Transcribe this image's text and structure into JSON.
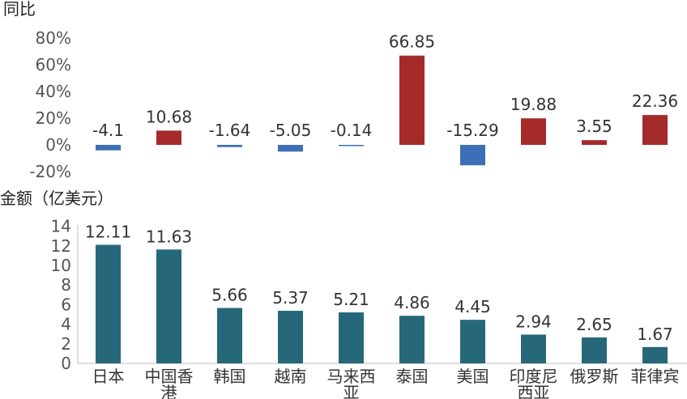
{
  "chart_data": [
    {
      "type": "bar",
      "ylabel": "同比",
      "ylim": [
        -20,
        80
      ],
      "yticks": [
        "80%",
        "60%",
        "40%",
        "20%",
        "0%",
        "-20%"
      ],
      "categories": [
        "日本",
        "中国香港",
        "韩国",
        "越南",
        "马来西亚",
        "泰国",
        "美国",
        "印度尼西亚",
        "俄罗斯",
        "菲律宾"
      ],
      "values": [
        -4.1,
        10.68,
        -1.64,
        -5.05,
        -0.14,
        66.85,
        -15.29,
        19.88,
        3.55,
        22.36
      ],
      "value_labels": [
        "-4.1",
        "10.68",
        "-1.64",
        "-5.05",
        "-0.14",
        "66.85",
        "-15.29",
        "19.88",
        "3.55",
        "22.36"
      ],
      "colors": {
        "positive": "#a52a2a",
        "negative": "#3d6fb6"
      }
    },
    {
      "type": "bar",
      "ylabel": "金额（亿美元）",
      "ylim": [
        0,
        14
      ],
      "yticks": [
        "14",
        "12",
        "10",
        "8",
        "6",
        "4",
        "2",
        "0"
      ],
      "categories": [
        "日本",
        "中国香港",
        "韩国",
        "越南",
        "马来西亚",
        "泰国",
        "美国",
        "印度尼西亚",
        "俄罗斯",
        "菲律宾"
      ],
      "category_lines": [
        [
          "日本"
        ],
        [
          "中国香",
          "港"
        ],
        [
          "韩国"
        ],
        [
          "越南"
        ],
        [
          "马来西",
          "亚"
        ],
        [
          "泰国"
        ],
        [
          "美国"
        ],
        [
          "印度尼",
          "西亚"
        ],
        [
          "俄罗斯"
        ],
        [
          "菲律宾"
        ]
      ],
      "values": [
        12.11,
        11.63,
        5.66,
        5.37,
        5.21,
        4.86,
        4.45,
        2.94,
        2.65,
        1.67
      ],
      "value_labels": [
        "12.11",
        "11.63",
        "5.66",
        "5.37",
        "5.21",
        "4.86",
        "4.45",
        "2.94",
        "2.65",
        "1.67"
      ],
      "colors": {
        "bar": "#26687a"
      }
    }
  ]
}
